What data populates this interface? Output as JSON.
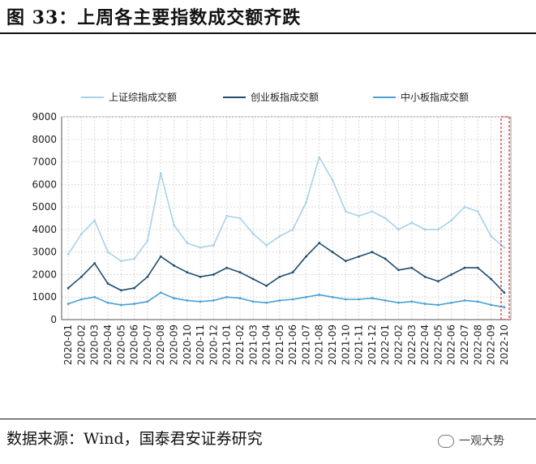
{
  "figure": {
    "title": "图 33：上周各主要指数成交额齐跌",
    "source": "数据来源：Wind，国泰君安证券研究",
    "watermark": "一观大势"
  },
  "chart_data": {
    "type": "line",
    "title": "",
    "xlabel": "",
    "ylabel": "",
    "ylim": [
      0,
      9000
    ],
    "yticks": [
      0,
      1000,
      2000,
      3000,
      4000,
      5000,
      6000,
      7000,
      8000,
      9000
    ],
    "x": [
      "2020-01",
      "2020-02",
      "2020-03",
      "2020-04",
      "2020-05",
      "2020-06",
      "2020-07",
      "2020-08",
      "2020-09",
      "2020-10",
      "2020-11",
      "2020-12",
      "2021-01",
      "2021-02",
      "2021-03",
      "2021-04",
      "2021-05",
      "2021-06",
      "2021-07",
      "2021-08",
      "2021-09",
      "2021-10",
      "2021-11",
      "2021-12",
      "2022-01",
      "2022-02",
      "2022-03",
      "2022-04",
      "2022-05",
      "2022-06",
      "2022-07",
      "2022-08",
      "2022-09",
      "2022-10"
    ],
    "grid": true,
    "legend_position": "top",
    "highlight": "last week of 2022-10 marked by red dashed box",
    "series": [
      {
        "name": "上证综指成交额",
        "color": "#a8d1ec",
        "values": [
          2900,
          3800,
          4400,
          3000,
          2600,
          2700,
          3500,
          6500,
          4200,
          3400,
          3200,
          3300,
          4600,
          4500,
          3800,
          3300,
          3700,
          4000,
          5200,
          7200,
          6200,
          4800,
          4600,
          4800,
          4500,
          4000,
          4300,
          4000,
          4000,
          4400,
          5000,
          4800,
          3700,
          3200
        ]
      },
      {
        "name": "创业板指成交额",
        "color": "#1f4e6e",
        "values": [
          1400,
          1900,
          2500,
          1600,
          1300,
          1400,
          1900,
          2800,
          2400,
          2100,
          1900,
          2000,
          2300,
          2100,
          1800,
          1500,
          1900,
          2100,
          2800,
          3400,
          3000,
          2600,
          2800,
          3000,
          2700,
          2200,
          2300,
          1900,
          1700,
          2000,
          2300,
          2300,
          1800,
          1200
        ]
      },
      {
        "name": "中小板指成交额",
        "color": "#4aa0d6",
        "values": [
          700,
          900,
          1000,
          750,
          650,
          700,
          800,
          1200,
          950,
          850,
          800,
          850,
          1000,
          950,
          800,
          750,
          850,
          900,
          1000,
          1100,
          1000,
          900,
          900,
          950,
          850,
          750,
          800,
          700,
          650,
          750,
          850,
          800,
          650,
          550
        ]
      }
    ]
  }
}
